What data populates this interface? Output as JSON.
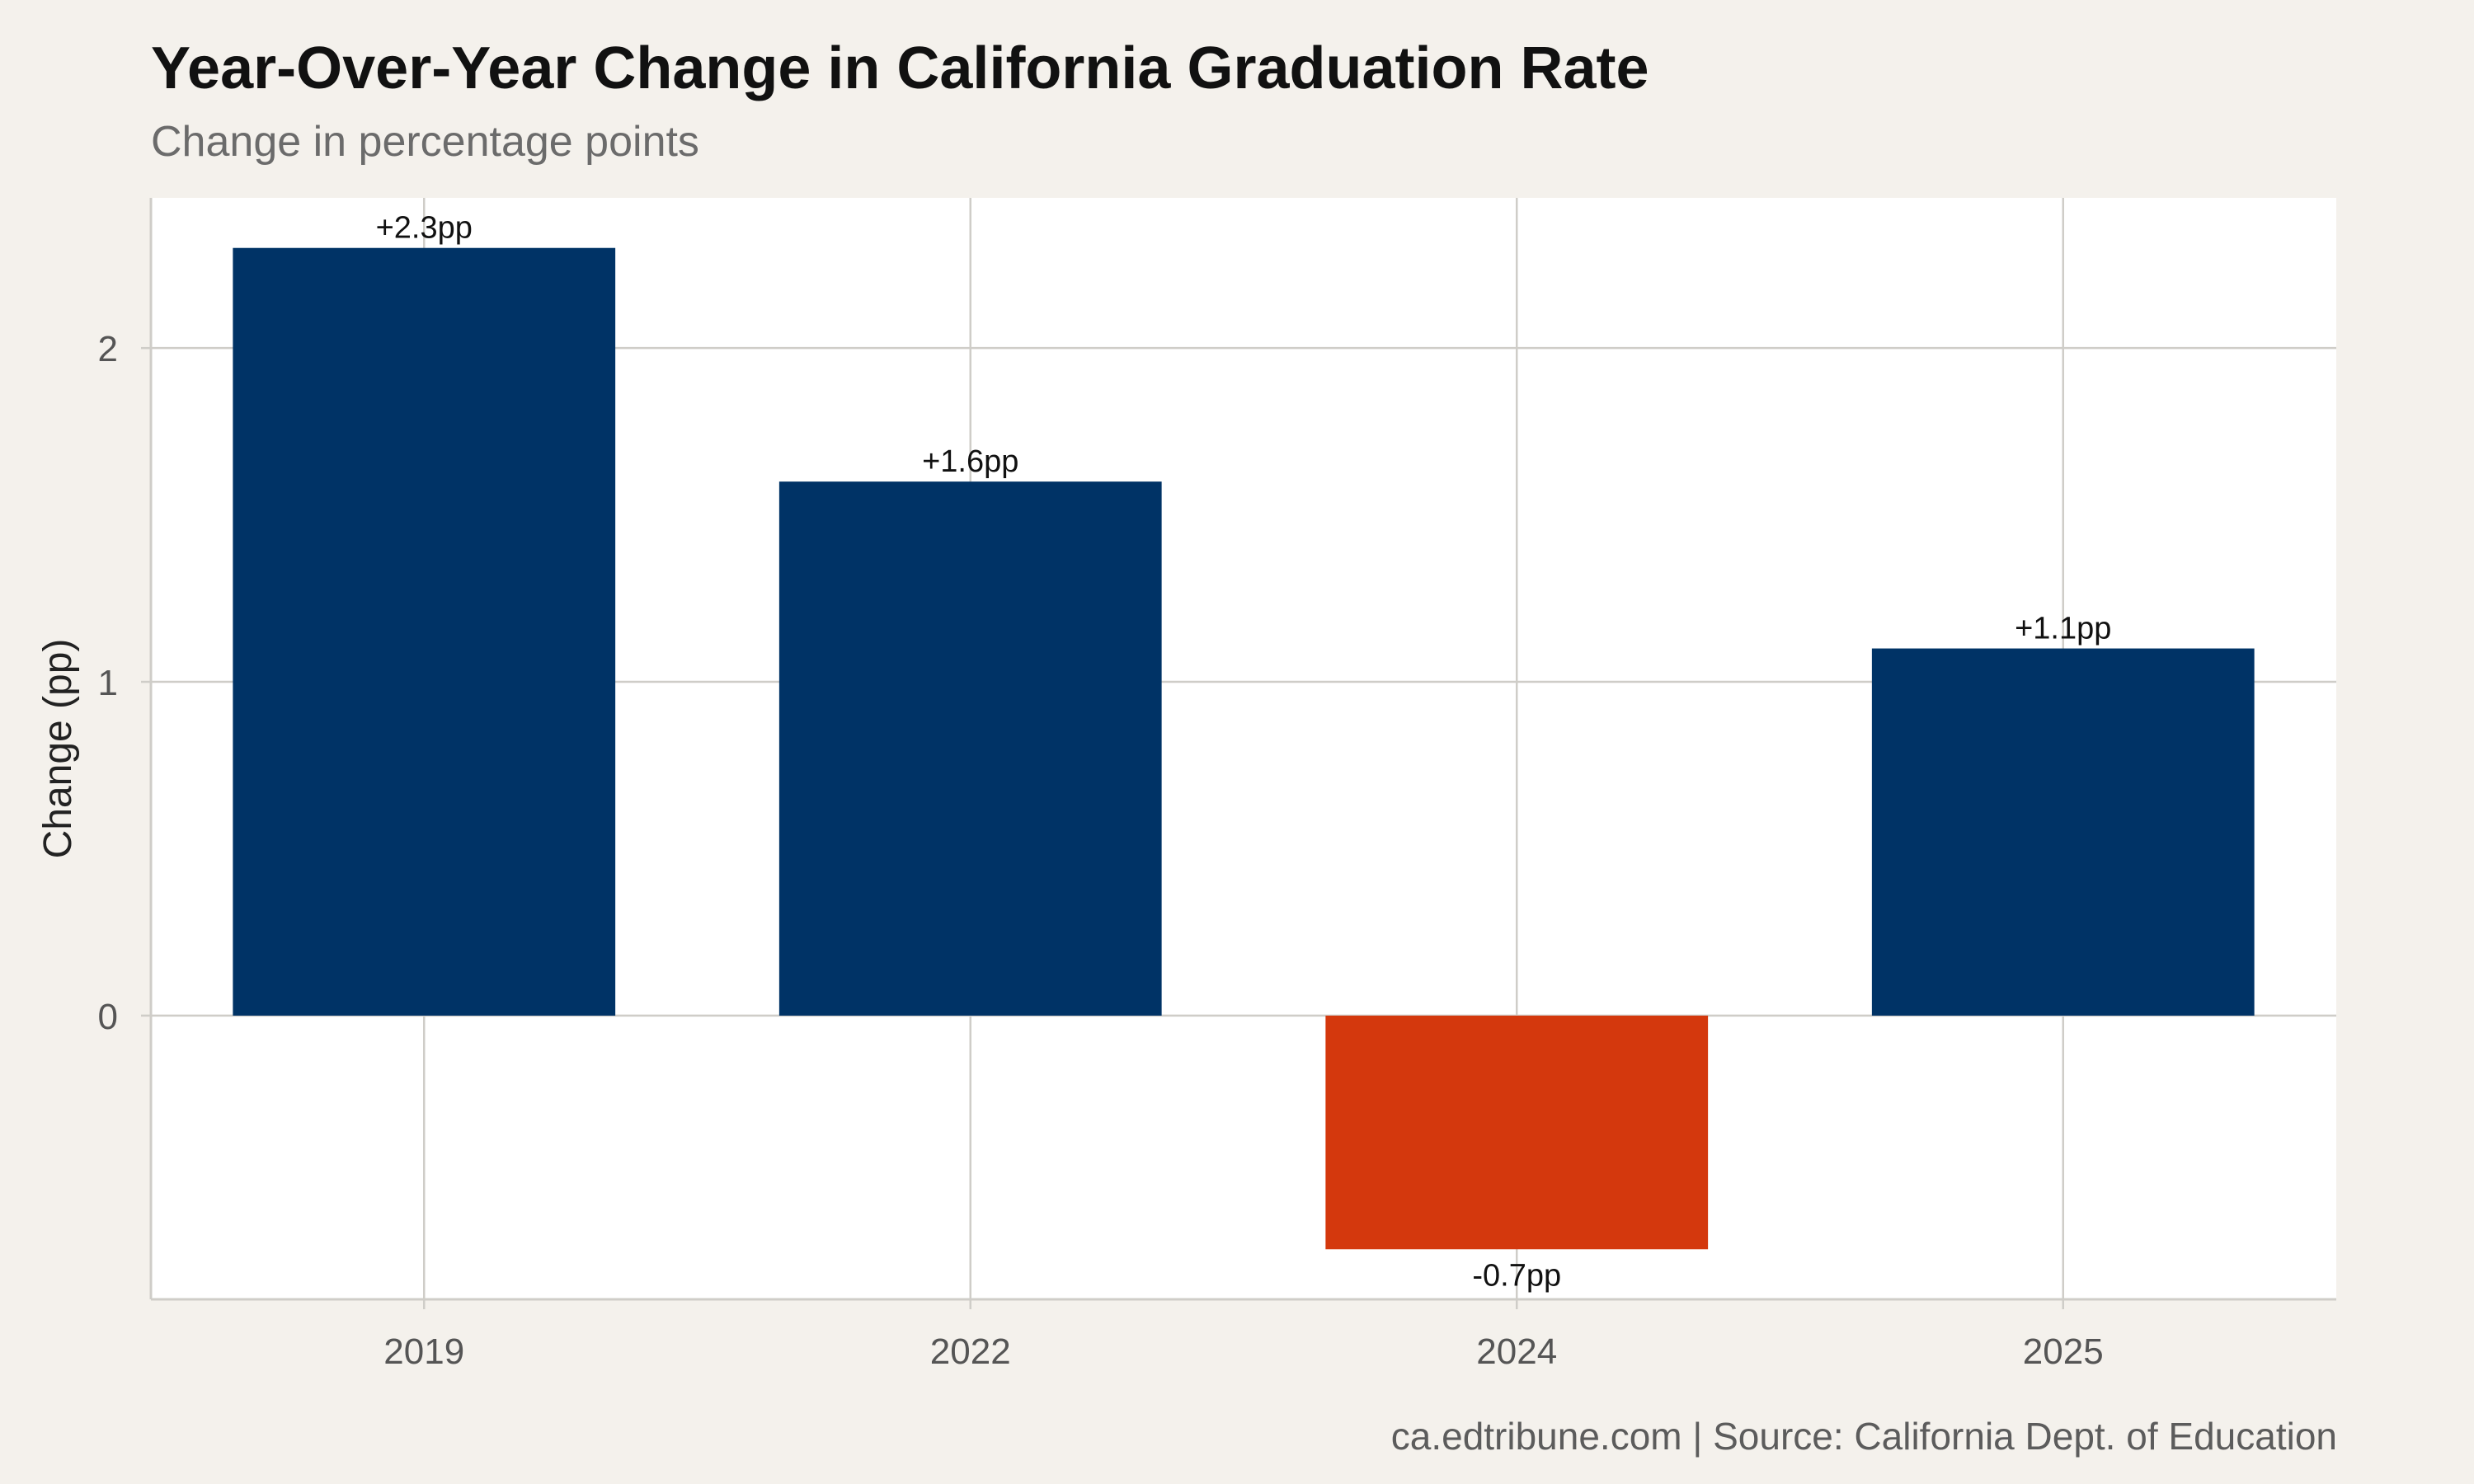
{
  "chart_data": {
    "type": "bar",
    "title": "Year-Over-Year Change in California Graduation Rate",
    "subtitle": "Change in percentage points",
    "xlabel": "",
    "ylabel": "Change (pp)",
    "categories": [
      "2019",
      "2022",
      "2024",
      "2025"
    ],
    "values": [
      2.3,
      1.6,
      -0.7,
      1.1
    ],
    "data_labels": [
      "+2.3pp",
      "+1.6pp",
      "-0.7pp",
      "+1.1pp"
    ],
    "yticks": [
      0,
      1,
      2
    ],
    "ylim": [
      -0.85,
      2.45
    ],
    "grid": true,
    "legend": "none",
    "colors": {
      "positive": "#003366",
      "negative": "#d4380d",
      "grid": "#cfcdc8",
      "panel": "#ffffff"
    },
    "caption": "ca.edtribune.com | Source: California Dept. of Education"
  }
}
